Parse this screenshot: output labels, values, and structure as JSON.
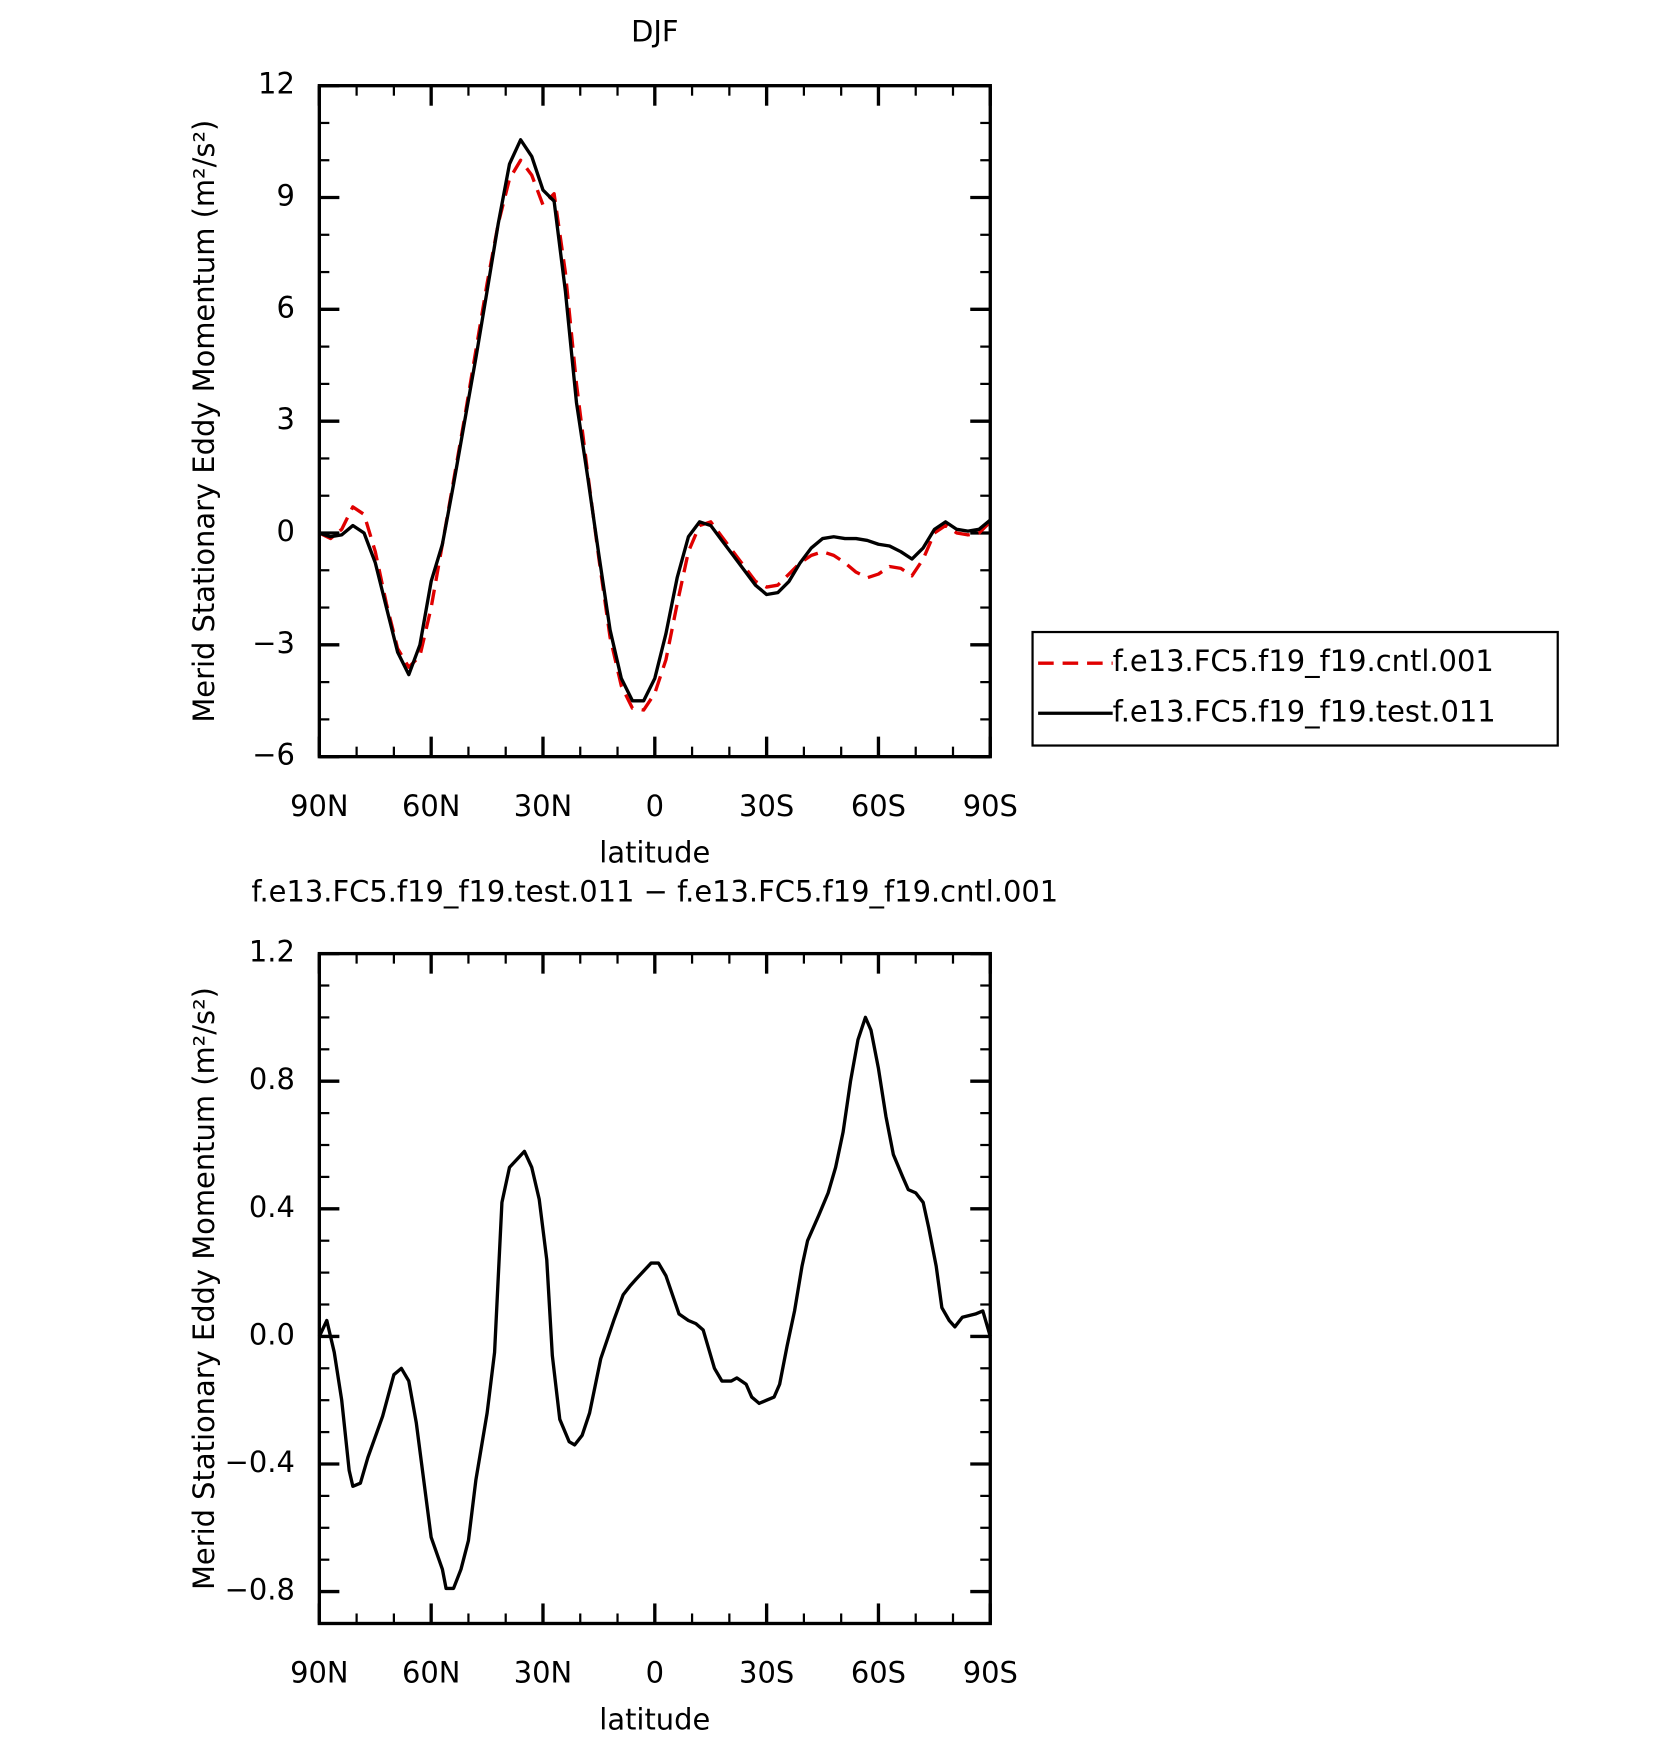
{
  "chart_data": [
    {
      "type": "line",
      "title": "DJF",
      "xlabel": "latitude",
      "ylabel": "Merid Stationary Eddy Momentum (m²/s²)",
      "x": [
        90,
        87,
        84,
        81,
        78,
        75,
        72,
        69,
        66,
        63,
        60,
        57,
        54,
        51,
        48,
        45,
        42,
        39,
        36,
        33,
        30,
        27,
        24,
        21,
        18,
        15,
        12,
        9,
        6,
        3,
        0,
        -3,
        -6,
        -9,
        -12,
        -15,
        -18,
        -21,
        -24,
        -27,
        -30,
        -33,
        -36,
        -39,
        -42,
        -45,
        -48,
        -51,
        -54,
        -57,
        -60,
        -63,
        -66,
        -69,
        -72,
        -75,
        -78,
        -81,
        -84,
        -87,
        -90
      ],
      "series": [
        {
          "name": "f.e13.FC5.f19_f19.cntl.001",
          "color": "#e00000",
          "dash": "dashed",
          "values": [
            0,
            -0.15,
            0.1,
            0.7,
            0.5,
            -0.5,
            -1.9,
            -3.1,
            -3.6,
            -3.3,
            -2.0,
            -0.3,
            1.4,
            3.1,
            4.9,
            6.7,
            8.3,
            9.5,
            10.0,
            9.6,
            8.8,
            9.1,
            7.0,
            4.0,
            1.6,
            -0.7,
            -2.8,
            -4.1,
            -4.7,
            -4.75,
            -4.3,
            -3.4,
            -1.9,
            -0.5,
            0.2,
            0.3,
            -0.1,
            -0.5,
            -0.9,
            -1.3,
            -1.45,
            -1.4,
            -1.1,
            -0.8,
            -0.6,
            -0.5,
            -0.6,
            -0.8,
            -1.05,
            -1.2,
            -1.1,
            -0.9,
            -0.95,
            -1.15,
            -0.7,
            0.0,
            0.2,
            0.0,
            -0.05,
            0.0,
            0.3
          ]
        },
        {
          "name": "f.e13.FC5.f19_f19.test.011",
          "color": "#000000",
          "dash": "solid",
          "values": [
            0,
            -0.1,
            -0.05,
            0.2,
            0,
            -0.8,
            -2.0,
            -3.2,
            -3.8,
            -3.0,
            -1.3,
            -0.3,
            1.3,
            3.0,
            4.7,
            6.5,
            8.3,
            9.9,
            10.55,
            10.1,
            9.2,
            8.9,
            6.5,
            3.5,
            1.5,
            -0.6,
            -2.6,
            -3.9,
            -4.5,
            -4.5,
            -3.9,
            -2.7,
            -1.2,
            -0.1,
            0.3,
            0.2,
            -0.2,
            -0.6,
            -1.0,
            -1.4,
            -1.65,
            -1.6,
            -1.3,
            -0.8,
            -0.4,
            -0.15,
            -0.1,
            -0.15,
            -0.15,
            -0.2,
            -0.3,
            -0.35,
            -0.5,
            -0.7,
            -0.4,
            0.1,
            0.3,
            0.1,
            0.05,
            0.1,
            0.35
          ]
        }
      ],
      "xlim": [
        90,
        -90
      ],
      "xticks": [
        {
          "value": 90,
          "label": "90N"
        },
        {
          "value": 60,
          "label": "60N"
        },
        {
          "value": 30,
          "label": "30N"
        },
        0,
        {
          "value": -30,
          "label": "30S"
        },
        {
          "value": -60,
          "label": "60S"
        },
        {
          "value": -90,
          "label": "90S"
        }
      ],
      "ylim": [
        -6,
        12
      ],
      "yticks": [
        {
          "value": -6,
          "label": "−6"
        },
        {
          "value": -3,
          "label": "−3"
        },
        0,
        3,
        6,
        9,
        12
      ],
      "legend": "right"
    },
    {
      "type": "line",
      "title": "f.e13.FC5.f19_f19.test.011 − f.e13.FC5.f19_f19.cntl.001",
      "xlabel": "latitude",
      "ylabel": "Merid Stationary Eddy Momentum (m²/s²)",
      "x": [
        90,
        88,
        86,
        84,
        82,
        81,
        79,
        77,
        73,
        70,
        68,
        66,
        64,
        62,
        60,
        57,
        56,
        54,
        52,
        50,
        48,
        45,
        43,
        41,
        39,
        35,
        33,
        31,
        29,
        27.5,
        25.5,
        23,
        21.5,
        19.5,
        17.5,
        14.5,
        11,
        8.5,
        6.5,
        5,
        1,
        -1,
        -3,
        -6.5,
        -9,
        -11,
        -13,
        -16,
        -18,
        -20.5,
        -22,
        -24.5,
        -26,
        -28,
        -30,
        -32,
        -33.5,
        -35.5,
        -37.5,
        -39.5,
        -41,
        -44,
        -46.5,
        -48.5,
        -50.5,
        -52.5,
        -54.5,
        -56.5,
        -58,
        -60,
        -62,
        -64,
        -66.5,
        -68,
        -70,
        -72,
        -73.5,
        -75.5,
        -77,
        -79,
        -80.5,
        -82.5,
        -86,
        -88,
        -90
      ],
      "values": [
        0,
        0.05,
        -0.05,
        -0.2,
        -0.42,
        -0.47,
        -0.46,
        -0.38,
        -0.25,
        -0.12,
        -0.1,
        -0.14,
        -0.27,
        -0.45,
        -0.63,
        -0.73,
        -0.79,
        -0.79,
        -0.73,
        -0.64,
        -0.45,
        -0.24,
        -0.05,
        0.42,
        0.53,
        0.58,
        0.53,
        0.43,
        0.24,
        -0.06,
        -0.26,
        -0.33,
        -0.34,
        -0.31,
        -0.24,
        -0.07,
        0.05,
        0.13,
        0.16,
        0.18,
        0.23,
        0.23,
        0.19,
        0.07,
        0.05,
        0.04,
        0.02,
        -0.1,
        -0.14,
        -0.14,
        -0.13,
        -0.15,
        -0.19,
        -0.21,
        -0.2,
        -0.19,
        -0.15,
        -0.03,
        0.08,
        0.22,
        0.3,
        0.38,
        0.45,
        0.53,
        0.64,
        0.8,
        0.93,
        1.0,
        0.96,
        0.84,
        0.69,
        0.57,
        0.5,
        0.46,
        0.45,
        0.42,
        0.34,
        0.22,
        0.09,
        0.05,
        0.03,
        0.06,
        0.07,
        0.08,
        0
      ],
      "color": "#000000",
      "xlim": [
        90,
        -90
      ],
      "xticks": [
        {
          "value": 90,
          "label": "90N"
        },
        {
          "value": 60,
          "label": "60N"
        },
        {
          "value": 30,
          "label": "30N"
        },
        0,
        {
          "value": -30,
          "label": "30S"
        },
        {
          "value": -60,
          "label": "60S"
        },
        {
          "value": -90,
          "label": "90S"
        }
      ],
      "ylim": [
        -0.9,
        1.2
      ],
      "yticks": [
        {
          "value": -0.8,
          "label": "−0.8"
        },
        {
          "value": -0.4,
          "label": "−0.4"
        },
        {
          "value": 0,
          "label": "0.0"
        },
        0.4,
        0.8,
        1.2
      ]
    }
  ]
}
